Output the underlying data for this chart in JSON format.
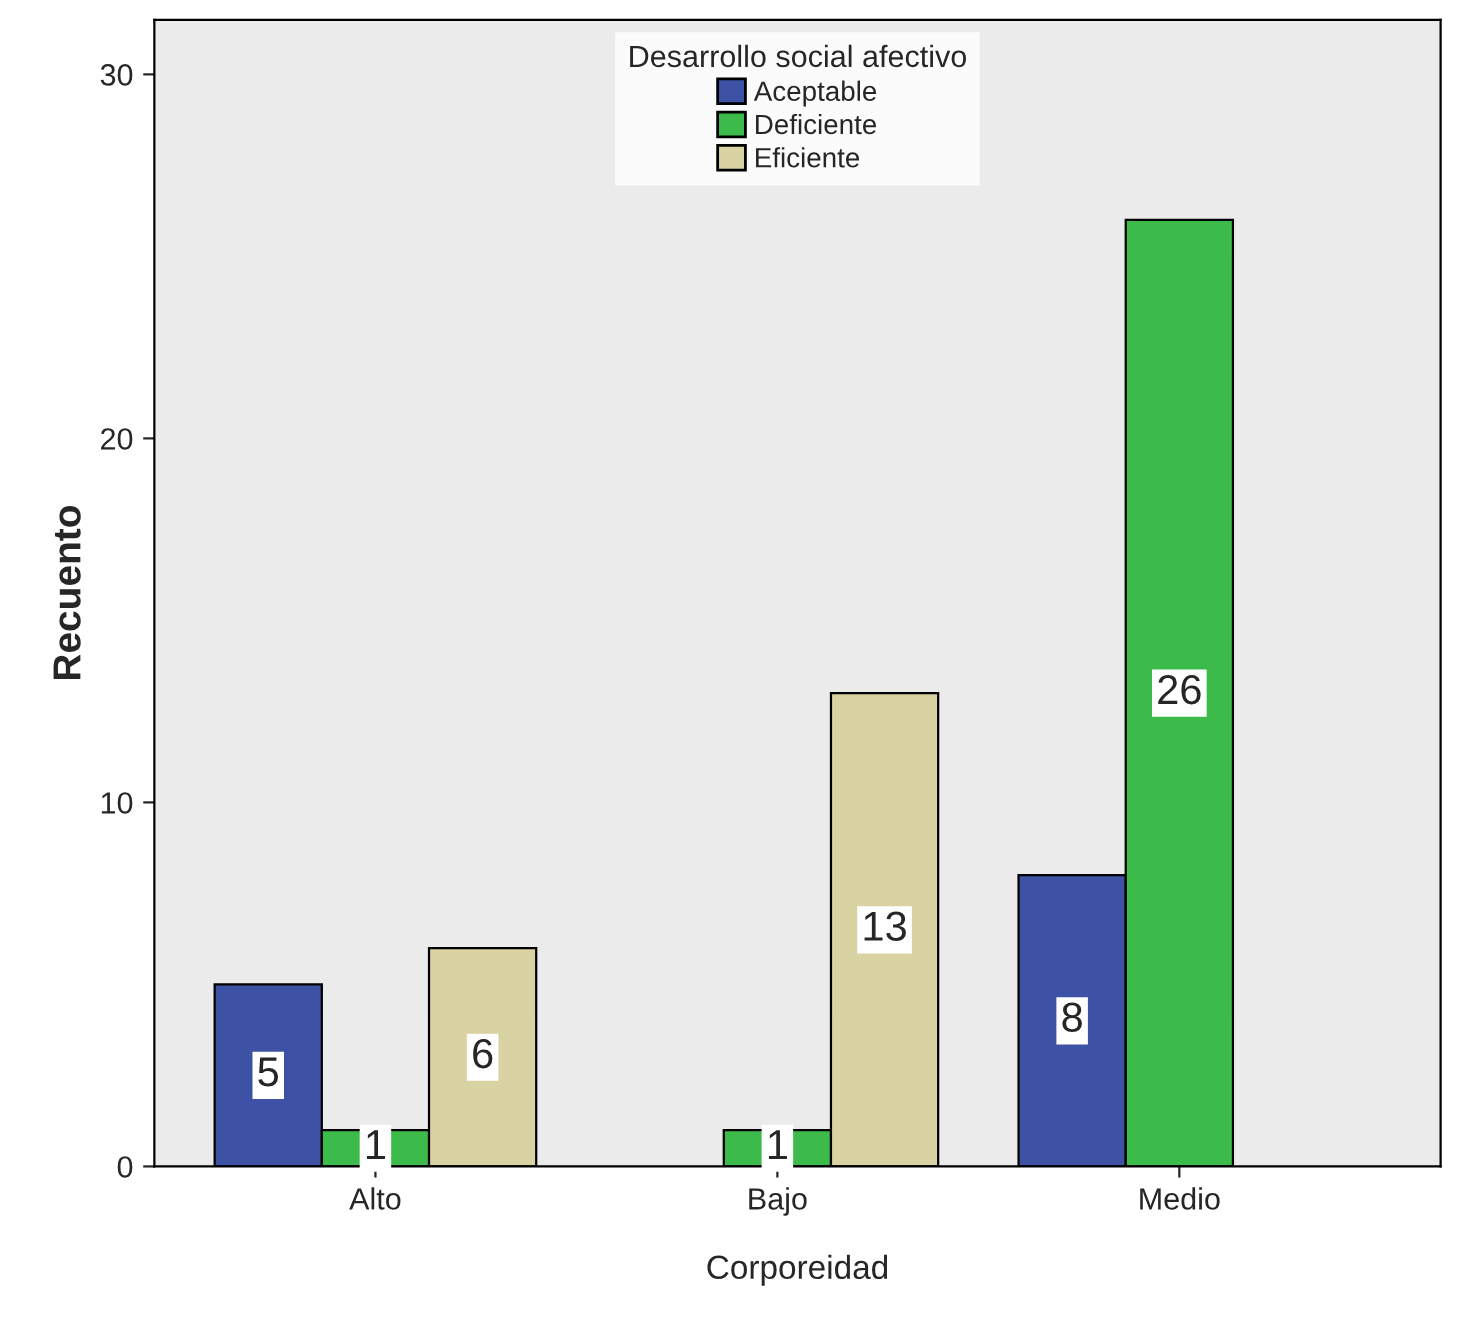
{
  "chart_data": {
    "type": "bar",
    "xlabel": "Corporeidad",
    "ylabel": "Recuento",
    "legend_title": "Desarrollo social afectivo",
    "categories": [
      "Alto",
      "Bajo",
      "Medio"
    ],
    "series": [
      {
        "name": "Aceptable",
        "color": "#3d52a4",
        "values": [
          5,
          null,
          8
        ]
      },
      {
        "name": "Deficiente",
        "color": "#3dbb4a",
        "values": [
          1,
          1,
          26
        ]
      },
      {
        "name": "Eficiente",
        "color": "#d9d2a2",
        "values": [
          6,
          13,
          null
        ]
      }
    ],
    "ylim": [
      0,
      31.5
    ],
    "yticks": [
      0,
      10,
      20,
      30
    ],
    "data_labels": true,
    "legend": "top",
    "grid": false
  }
}
